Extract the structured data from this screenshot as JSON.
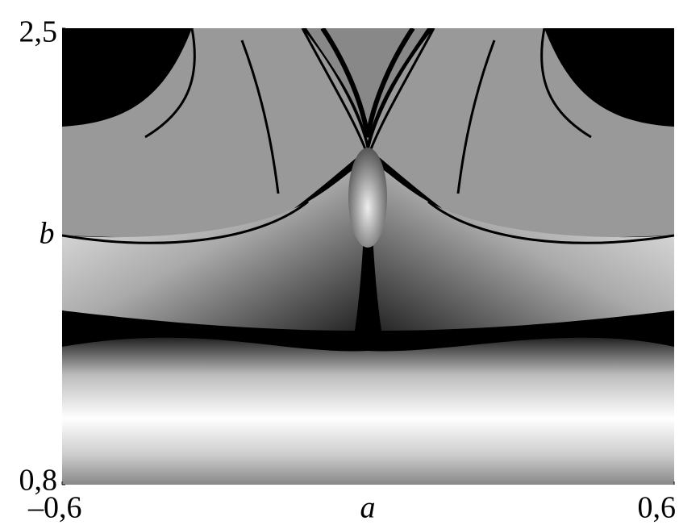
{
  "chart_data": {
    "type": "heatmap",
    "xlabel": "a",
    "ylabel": "b",
    "xlim": [
      -0.6,
      0.6
    ],
    "ylim": [
      0.8,
      2.5
    ],
    "xticks": [
      {
        "value": -0.6,
        "label": "–0,6"
      },
      {
        "value": 0.6,
        "label": "0,6"
      }
    ],
    "yticks": [
      {
        "value": 0.8,
        "label": "0,8"
      },
      {
        "value": 2.5,
        "label": "2,5"
      }
    ]
  }
}
